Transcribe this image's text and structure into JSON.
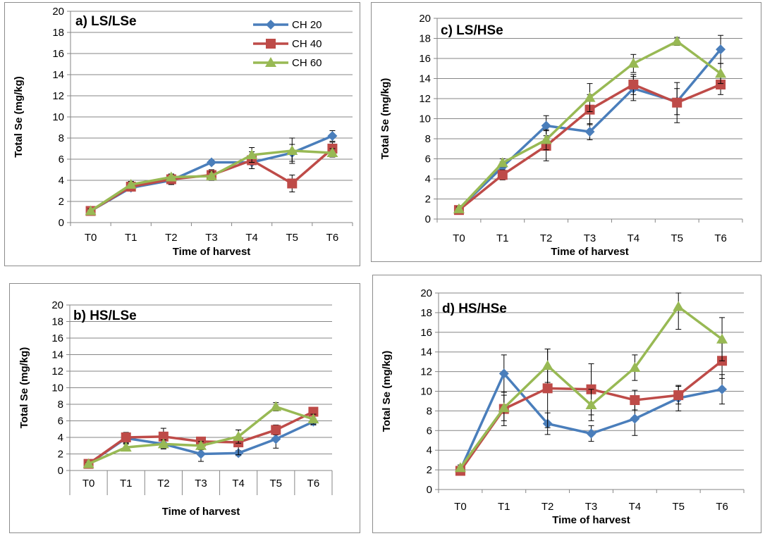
{
  "chart_data": [
    {
      "id": "a",
      "type": "line",
      "title": "a) LS/LSe",
      "xlabel": "Time of harvest",
      "ylabel": "Total Se (mg/kg)",
      "categories": [
        "T0",
        "T1",
        "T2",
        "T3",
        "T4",
        "T5",
        "T6"
      ],
      "ylim": [
        0,
        20
      ],
      "yticks": [
        "0",
        "2",
        "4",
        "6",
        "8",
        "10",
        "12",
        "14",
        "16",
        "18",
        "20"
      ],
      "series": [
        {
          "name": "CH 20",
          "values": [
            1.1,
            3.3,
            4.0,
            5.7,
            5.7,
            6.6,
            8.2
          ],
          "errors": [
            0.2,
            0.3,
            0.4,
            0.2,
            0.6,
            0.8,
            0.5
          ]
        },
        {
          "name": "CH 40",
          "values": [
            1.1,
            3.4,
            4.1,
            4.5,
            5.9,
            3.7,
            7.0
          ],
          "errors": [
            0.2,
            0.3,
            0.5,
            0.5,
            0.8,
            0.8,
            0.6
          ]
        },
        {
          "name": "CH 60",
          "values": [
            1.1,
            3.6,
            4.3,
            4.4,
            6.4,
            6.8,
            6.6
          ],
          "errors": [
            0.2,
            0.3,
            0.3,
            0.4,
            0.7,
            1.2,
            0.4
          ]
        }
      ]
    },
    {
      "id": "b",
      "type": "line",
      "title": "b) HS/LSe",
      "xlabel": "Time of harvest",
      "ylabel": "Total Se (mg/kg)",
      "categories": [
        "T0",
        "T1",
        "T2",
        "T3",
        "T4",
        "T5",
        "T6"
      ],
      "ylim": [
        0,
        20
      ],
      "yticks": [
        "0",
        "2",
        "4",
        "6",
        "8",
        "10",
        "12",
        "14",
        "16",
        "18",
        "20"
      ],
      "series": [
        {
          "name": "CH 20",
          "values": [
            0.8,
            3.9,
            3.2,
            2.0,
            2.1,
            3.8,
            5.9
          ],
          "errors": [
            0.2,
            0.6,
            0.6,
            0.9,
            0.3,
            1.1,
            0.4
          ]
        },
        {
          "name": "CH 40",
          "values": [
            0.8,
            4.0,
            4.1,
            3.5,
            3.4,
            4.9,
            7.1
          ],
          "errors": [
            0.2,
            0.6,
            1.0,
            0.5,
            1.5,
            0.6,
            0.5
          ]
        },
        {
          "name": "CH 60",
          "values": [
            0.8,
            2.8,
            3.2,
            3.0,
            4.1,
            7.7,
            6.2
          ],
          "errors": [
            0.2,
            0.4,
            0.5,
            0.5,
            0.8,
            0.5,
            0.6
          ]
        }
      ]
    },
    {
      "id": "c",
      "type": "line",
      "title": "c) LS/HSe",
      "xlabel": "Time of harvest",
      "ylabel": "Total Se (mg/kg)",
      "categories": [
        "T0",
        "T1",
        "T2",
        "T3",
        "T4",
        "T5",
        "T6"
      ],
      "ylim": [
        0,
        20
      ],
      "yticks": [
        "0",
        "2",
        "4",
        "6",
        "8",
        "10",
        "12",
        "14",
        "16",
        "18",
        "20"
      ],
      "series": [
        {
          "name": "CH 20",
          "values": [
            1.0,
            5.2,
            9.3,
            8.7,
            13.0,
            11.7,
            16.9
          ],
          "errors": [
            0.2,
            0.5,
            1.0,
            0.8,
            1.2,
            1.3,
            1.4
          ]
        },
        {
          "name": "CH 40",
          "values": [
            0.9,
            4.4,
            7.3,
            10.9,
            13.4,
            11.6,
            13.4
          ],
          "errors": [
            0.2,
            0.5,
            1.5,
            1.5,
            1.0,
            2.0,
            1.0
          ]
        },
        {
          "name": "CH 60",
          "values": [
            1.0,
            5.6,
            7.9,
            12.1,
            15.5,
            17.7,
            14.5
          ],
          "errors": [
            0.2,
            0.4,
            1.0,
            1.4,
            0.9,
            0.4,
            1.0
          ]
        }
      ]
    },
    {
      "id": "d",
      "type": "line",
      "title": "d) HS/HSe",
      "xlabel": "Time of harvest",
      "ylabel": "Total Se (mg/kg)",
      "categories": [
        "T0",
        "T1",
        "T2",
        "T3",
        "T4",
        "T5",
        "T6"
      ],
      "ylim": [
        0,
        20
      ],
      "yticks": [
        "0",
        "2",
        "4",
        "6",
        "8",
        "10",
        "12",
        "14",
        "16",
        "18",
        "20"
      ],
      "series": [
        {
          "name": "CH 20",
          "values": [
            2.0,
            11.8,
            6.7,
            5.7,
            7.2,
            9.3,
            10.2
          ],
          "errors": [
            0.3,
            1.9,
            1.1,
            0.8,
            1.7,
            1.3,
            1.5
          ]
        },
        {
          "name": "CH 40",
          "values": [
            1.9,
            8.2,
            10.3,
            10.2,
            9.1,
            9.6,
            13.1
          ],
          "errors": [
            0.3,
            1.7,
            4.0,
            2.6,
            1.0,
            0.9,
            1.8
          ]
        },
        {
          "name": "CH 60",
          "values": [
            2.2,
            8.3,
            12.6,
            8.6,
            12.4,
            18.6,
            15.3
          ],
          "errors": [
            0.3,
            1.3,
            1.7,
            1.6,
            1.3,
            2.3,
            2.2
          ]
        }
      ]
    }
  ],
  "legend": {
    "items": [
      "CH 20",
      "CH 40",
      "CH 60"
    ]
  },
  "colors": {
    "ch20": "#4a7ebb",
    "ch40": "#be4b48",
    "ch60": "#98b954",
    "grid": "#868686",
    "axis": "#868686"
  }
}
